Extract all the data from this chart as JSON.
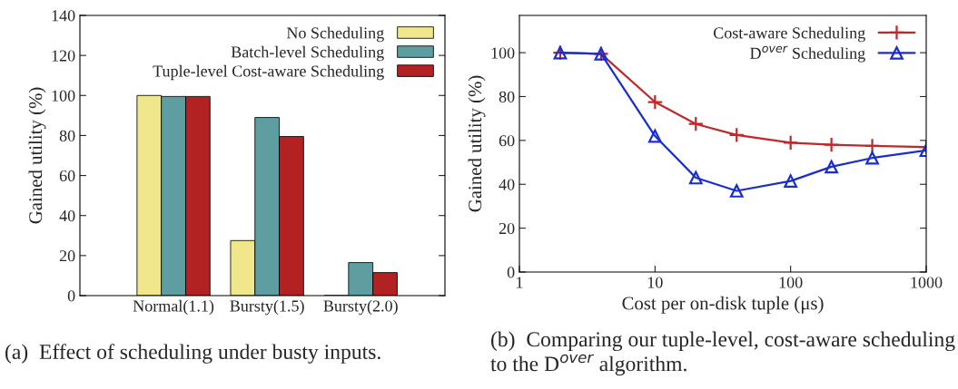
{
  "chart_data": [
    {
      "type": "bar",
      "ylabel": "Gained utility (%)",
      "categories": [
        "Normal(1.1)",
        "Bursty(1.5)",
        "Bursty(2.0)"
      ],
      "ylim": [
        0,
        140
      ],
      "yticks": [
        0,
        20,
        40,
        60,
        80,
        100,
        120,
        140
      ],
      "legend": "top right",
      "grid": false,
      "series": [
        {
          "name": "No Scheduling",
          "color": "#f0e68c",
          "values": [
            100,
            27.5,
            0
          ]
        },
        {
          "name": "Batch-level Scheduling",
          "color": "#5f9ea0",
          "values": [
            99.5,
            89,
            16.5
          ]
        },
        {
          "name": "Tuple-level Cost-aware Scheduling",
          "color": "#b22222",
          "values": [
            99.5,
            79.5,
            11.5
          ]
        }
      ],
      "annotations": [
        "(a)  Effect of scheduling under busty inputs."
      ]
    },
    {
      "type": "line",
      "xlabel": "Cost per on-disk tuple (μs)",
      "ylabel": "Gained utility (%)",
      "log": "x",
      "xlim": [
        1,
        1000
      ],
      "xticks": [
        1,
        10,
        100,
        1000
      ],
      "ylim": [
        0,
        117
      ],
      "yticks": [
        0,
        20,
        40,
        60,
        80,
        100
      ],
      "legend": "top right",
      "grid": false,
      "x": [
        2,
        4,
        10,
        20,
        40,
        100,
        200,
        400,
        1000
      ],
      "series": [
        {
          "name": "Cost-aware Scheduling",
          "color": "#c0282a",
          "marker": "cross",
          "values": [
            100,
            99.5,
            77.5,
            67.5,
            62.5,
            59,
            58,
            57.5,
            57
          ]
        },
        {
          "name": "D$^{over}$ Scheduling",
          "color": "#1a2ed0",
          "marker": "triangle",
          "values": [
            100,
            99.5,
            62,
            43,
            37,
            41.5,
            48,
            52,
            55.5
          ]
        }
      ],
      "annotations": [
        "(b)  Comparing our tuple-level, cost-aware scheduling to the D$^{over}$ algorithm."
      ]
    }
  ]
}
